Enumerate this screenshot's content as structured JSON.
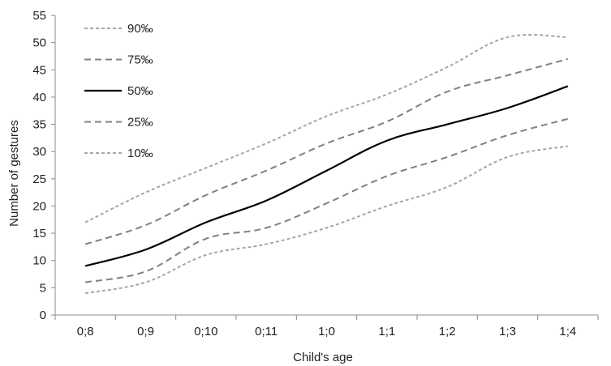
{
  "chart_data": {
    "type": "line",
    "title": "",
    "xlabel": "Child's age",
    "ylabel": "Number of gestures",
    "categories": [
      "0;8",
      "0;9",
      "0;10",
      "0;11",
      "1;0",
      "1;1",
      "1;2",
      "1;3",
      "1;4"
    ],
    "ylim": [
      0,
      55
    ],
    "ytick_step": 5,
    "grid": false,
    "legend_position": "top-left",
    "series": [
      {
        "name": "90%o",
        "label": "90‰",
        "values": [
          17,
          22.5,
          27,
          31.5,
          36.5,
          40.5,
          45.5,
          51,
          51
        ],
        "color": "#a6a6a6",
        "dash": "dotted"
      },
      {
        "name": "75%o",
        "label": "75‰",
        "values": [
          13,
          16.5,
          22,
          26.5,
          31.5,
          35.5,
          41,
          44,
          47
        ],
        "color": "#808080",
        "dash": "dashed"
      },
      {
        "name": "50%o",
        "label": "50‰",
        "values": [
          9,
          12,
          17,
          21,
          26.5,
          32,
          35,
          38,
          42
        ],
        "color": "#000000",
        "dash": "solid"
      },
      {
        "name": "25%o",
        "label": "25‰",
        "values": [
          6,
          8,
          14,
          16,
          20.5,
          25.5,
          29,
          33,
          36
        ],
        "color": "#808080",
        "dash": "dashed"
      },
      {
        "name": "10%o",
        "label": "10‰",
        "values": [
          4,
          6,
          11,
          13,
          16,
          20,
          23.5,
          29,
          31
        ],
        "color": "#a6a6a6",
        "dash": "dotted"
      }
    ]
  }
}
